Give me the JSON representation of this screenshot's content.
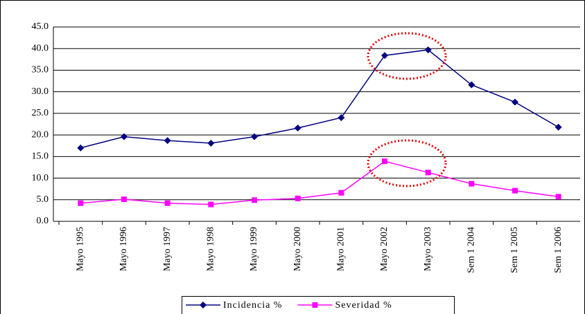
{
  "chart_data": {
    "type": "line",
    "categories": [
      "Mayo 1995",
      "Mayo 1996",
      "Mayo 1997",
      "Mayo 1998",
      "Mayo 1999",
      "Mayo 2000",
      "Mayo 2001",
      "Mayo 2002",
      "Mayo 2003",
      "Sem 1 2004",
      "Sem 1 2005",
      "Sem 1 2006"
    ],
    "series": [
      {
        "name": "Incidencia %",
        "color": "#000080",
        "marker": "diamond",
        "values": [
          17.0,
          19.6,
          18.7,
          18.1,
          19.6,
          21.6,
          24.0,
          38.4,
          39.7,
          31.6,
          27.6,
          21.8
        ]
      },
      {
        "name": "Severidad %",
        "color": "#ff00ff",
        "marker": "square",
        "values": [
          4.2,
          5.1,
          4.2,
          3.9,
          4.9,
          5.3,
          6.6,
          13.9,
          11.3,
          8.7,
          7.1,
          5.7
        ]
      }
    ],
    "ylim": [
      0,
      45
    ],
    "yticks": [
      {
        "value": 0,
        "label": "0.0"
      },
      {
        "value": 5,
        "label": "5.0"
      },
      {
        "value": 10,
        "label": "10.0"
      },
      {
        "value": 15,
        "label": "15.0"
      },
      {
        "value": 20,
        "label": "20.0"
      },
      {
        "value": 25,
        "label": "25.0"
      },
      {
        "value": 30,
        "label": "30.0"
      },
      {
        "value": 35,
        "label": "35.0"
      },
      {
        "value": 40,
        "label": "40.0"
      },
      {
        "value": 45,
        "label": "45.0"
      }
    ],
    "grid": true,
    "legend": "bottom"
  }
}
